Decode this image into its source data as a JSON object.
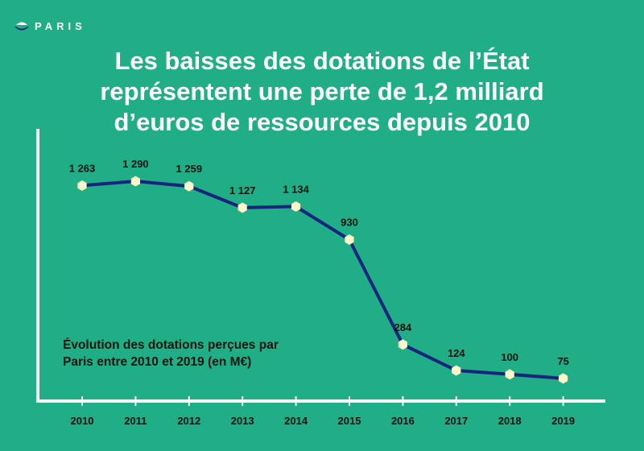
{
  "header": {
    "logo_text": "PARIS",
    "title_lines": [
      "Les baisses des dotations de l’État",
      "représentent une perte de 1,2 milliard",
      "d’euros de ressources depuis 2010"
    ]
  },
  "colors": {
    "background": "#1fae85",
    "line": "#1a237e",
    "marker": "#fff7c8",
    "axis": "#ffffff",
    "label": "#111111"
  },
  "chart_data": {
    "type": "line",
    "title": "Évolution des dotations perçues par Paris entre 2010 et 2019 (en M€)",
    "title_lines": [
      "Évolution des dotations perçues par",
      "Paris entre 2010 et 2019 (en M€)"
    ],
    "categories": [
      "2010",
      "2011",
      "2012",
      "2013",
      "2014",
      "2015",
      "2016",
      "2017",
      "2018",
      "2019"
    ],
    "values": [
      1263,
      1290,
      1259,
      1127,
      1134,
      930,
      284,
      124,
      100,
      75
    ],
    "value_labels": [
      "1 263",
      "1 290",
      "1 259",
      "1 127",
      "1 134",
      "930",
      "284",
      "124",
      "100",
      "75"
    ],
    "ylim": [
      0,
      1290
    ],
    "grid": false,
    "legend": "none",
    "xlabel": "",
    "ylabel": ""
  }
}
